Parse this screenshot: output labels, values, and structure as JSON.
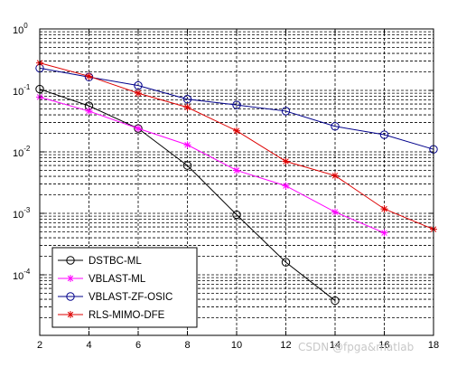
{
  "watermark": "CSDN @fpga&matlab",
  "chart_data": {
    "type": "line",
    "title": "",
    "xlabel": "",
    "ylabel": "",
    "x_scale": "linear",
    "y_scale": "log",
    "xlim": [
      2,
      18
    ],
    "ylim": [
      1e-05,
      1
    ],
    "x_ticks": [
      2,
      4,
      6,
      8,
      10,
      12,
      14,
      16,
      18
    ],
    "y_ticks": [
      {
        "value": 1,
        "base": "10",
        "exp": "0"
      },
      {
        "value": 0.1,
        "base": "10",
        "exp": "-1"
      },
      {
        "value": 0.01,
        "base": "10",
        "exp": "-2"
      },
      {
        "value": 0.001,
        "base": "10",
        "exp": "-3"
      },
      {
        "value": 0.0001,
        "base": "10",
        "exp": "-4"
      }
    ],
    "grid": true,
    "legend_position": "bottom-left",
    "series": [
      {
        "name": "DSTBC-ML",
        "color": "#000000",
        "marker": "circle",
        "x": [
          2,
          4,
          6,
          8,
          10,
          12,
          14
        ],
        "y": [
          0.105,
          0.056,
          0.024,
          0.006,
          0.00095,
          0.00016,
          3.8e-05
        ]
      },
      {
        "name": "VBLAST-ML",
        "color": "#ff00ff",
        "marker": "star",
        "x": [
          2,
          4,
          6,
          8,
          10,
          12,
          14,
          16
        ],
        "y": [
          0.078,
          0.046,
          0.024,
          0.013,
          0.005,
          0.0028,
          0.00105,
          0.00048
        ]
      },
      {
        "name": "VBLAST-ZF-OSIC",
        "color": "#00008b",
        "marker": "circle",
        "x": [
          2,
          4,
          6,
          8,
          10,
          12,
          14,
          16,
          18
        ],
        "y": [
          0.23,
          0.165,
          0.12,
          0.072,
          0.058,
          0.046,
          0.026,
          0.019,
          0.011
        ]
      },
      {
        "name": "RLS-MIMO-DFE",
        "color": "#dd0000",
        "marker": "star",
        "x": [
          2,
          4,
          6,
          8,
          10,
          12,
          14,
          16,
          18
        ],
        "y": [
          0.28,
          0.17,
          0.09,
          0.053,
          0.022,
          0.007,
          0.0041,
          0.00118,
          0.00055
        ]
      }
    ]
  }
}
